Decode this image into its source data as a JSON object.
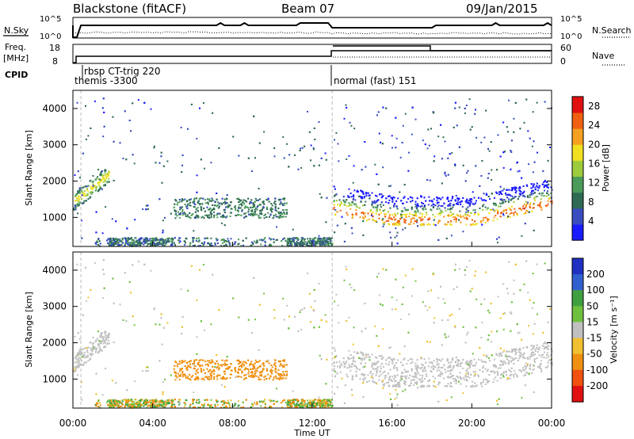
{
  "header": {
    "station": "Blackstone (fitACF)",
    "beam": "Beam 07",
    "date": "09/Jan/2015"
  },
  "status_panel": {
    "left_labels": {
      "nsky": "N.Sky",
      "freq_line1": "Freq.",
      "freq_line2": "[MHz]",
      "cpid": "CPID"
    },
    "right_labels": {
      "nsearch": "N.Search",
      "nave": "Nave"
    },
    "noise_ticks_left": [
      "10^5",
      "10^0"
    ],
    "noise_ticks_right": [
      "10^5",
      "10^0"
    ],
    "freq_ticks": [
      "18",
      "8"
    ],
    "nave_ticks": [
      "60",
      "0"
    ],
    "cpid_segments": [
      {
        "label": "rbsp CT-trig 220",
        "start_hour": 0.75
      },
      {
        "label": "themis -3300",
        "start_hour": 0.2
      },
      {
        "label": "normal (fast) 151",
        "start_hour": 13.0
      }
    ]
  },
  "chart_data": [
    {
      "type": "heatmap",
      "name": "power",
      "xlabel": "Time UT",
      "ylabel": "Slant Range [km]",
      "xlim": [
        0,
        24
      ],
      "ylim": [
        200,
        4500
      ],
      "x_ticks": [
        "00:00",
        "04:00",
        "08:00",
        "12:00",
        "16:00",
        "20:00",
        "00:00"
      ],
      "y_ticks": [
        1000,
        2000,
        3000,
        4000
      ],
      "colorbar_label": "Power [dB]",
      "colorbar_ticks": [
        4,
        8,
        12,
        16,
        20,
        24,
        28
      ],
      "colorbar_range": [
        0,
        30
      ],
      "colors": [
        "#1a1aff",
        "#3a4cc0",
        "#2f6b54",
        "#4a9b5a",
        "#9ccc3c",
        "#f0e020",
        "#f5a020",
        "#f06010",
        "#e01010"
      ],
      "features": [
        {
          "desc": "evening band",
          "t": [
            0.0,
            1.5
          ],
          "r": [
            1300,
            2200
          ],
          "power": 18
        },
        {
          "desc": "morning band",
          "t": [
            5.0,
            10.5
          ],
          "r": [
            1000,
            1500
          ],
          "power": 8
        },
        {
          "desc": "night band",
          "t": [
            13.0,
            24.0
          ],
          "r": [
            1100,
            2000
          ],
          "power": 24
        },
        {
          "desc": "near range",
          "t": [
            1.0,
            13.0
          ],
          "r": [
            250,
            450
          ],
          "power": 8
        }
      ]
    },
    {
      "type": "heatmap",
      "name": "velocity",
      "xlabel": "Time UT",
      "ylabel": "Slant Range [km]",
      "xlim": [
        0,
        24
      ],
      "ylim": [
        200,
        4500
      ],
      "x_ticks": [
        "00:00",
        "04:00",
        "08:00",
        "12:00",
        "16:00",
        "20:00",
        "00:00"
      ],
      "y_ticks": [
        1000,
        2000,
        3000,
        4000
      ],
      "colorbar_label": "Velocity [m s⁻¹]",
      "colorbar_ticks": [
        200,
        100,
        50,
        15,
        -15,
        -50,
        -100,
        -200
      ],
      "colorbar_range": [
        -250,
        250
      ],
      "colors": [
        "#2030c0",
        "#3060d0",
        "#40a040",
        "#70c040",
        "#c0c0c0",
        "#f0c030",
        "#f09010",
        "#f05010",
        "#e01010"
      ]
    }
  ]
}
